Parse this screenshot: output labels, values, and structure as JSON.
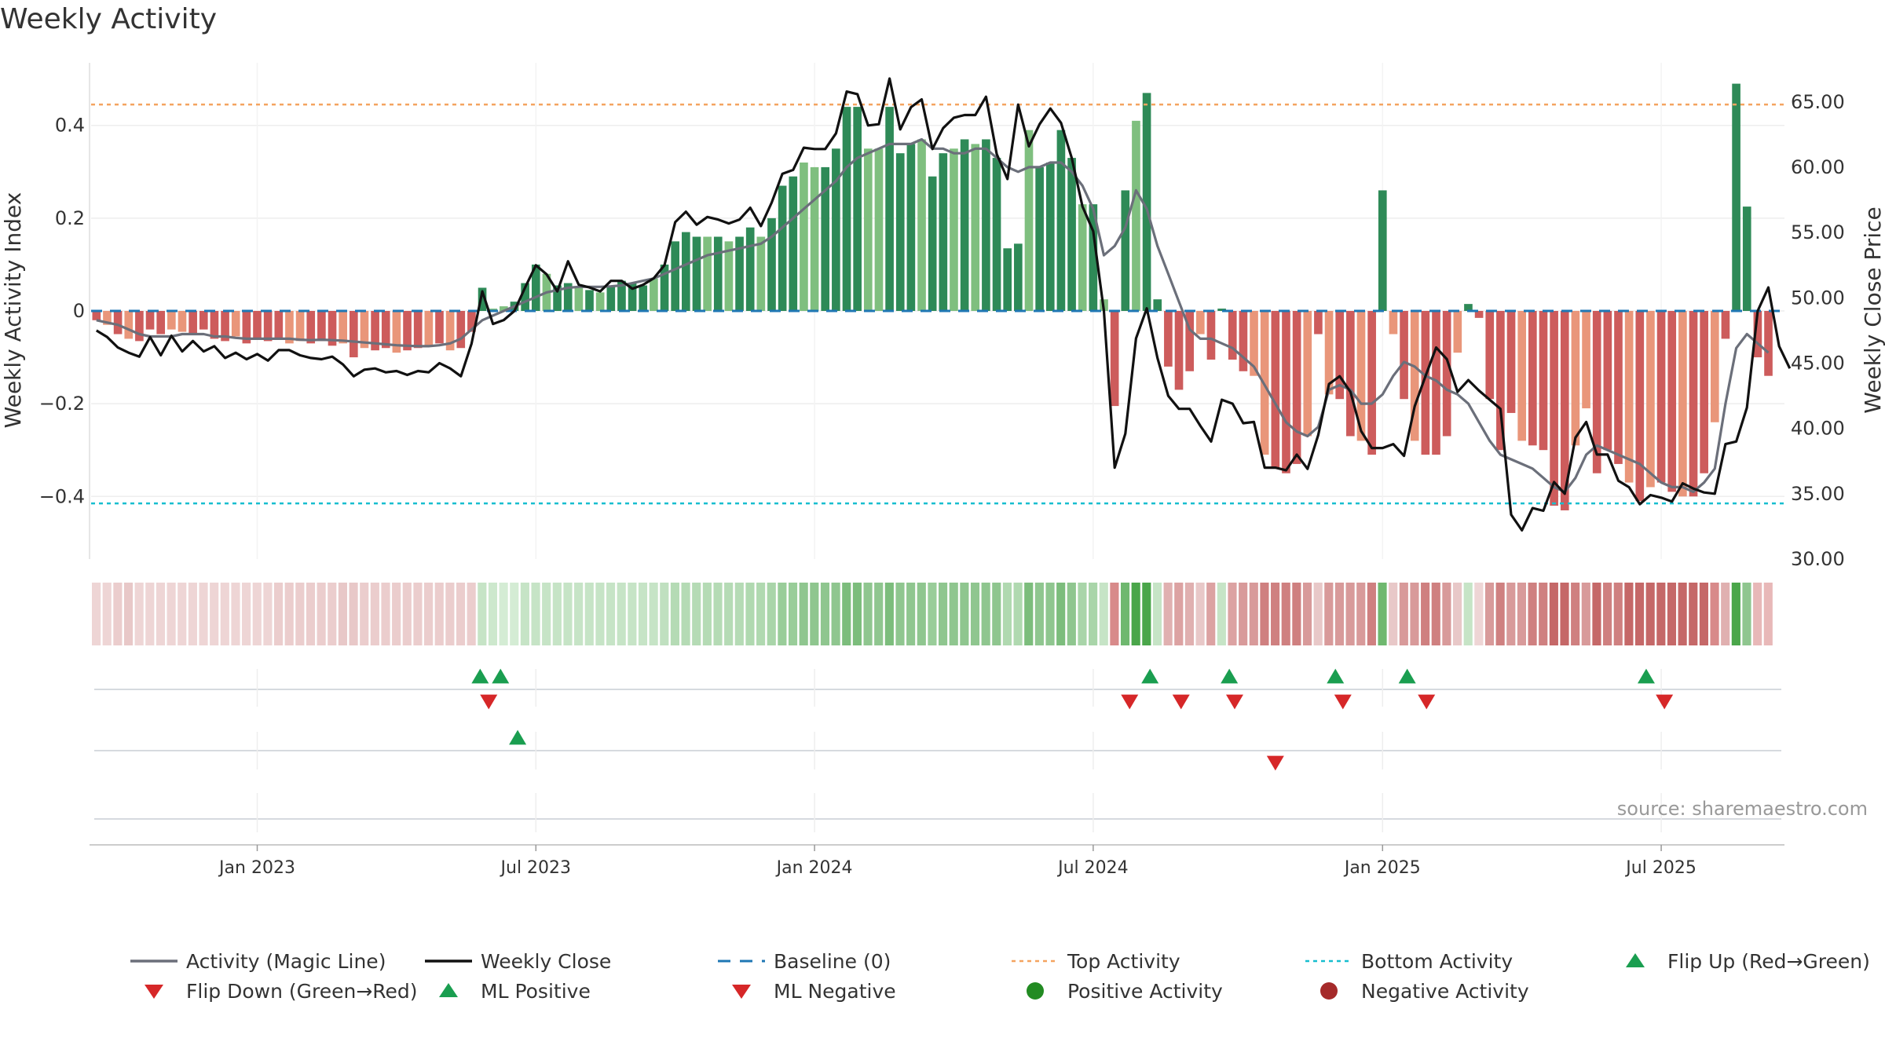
{
  "title": "Weekly Activity",
  "source": "source: sharemaestro.com",
  "colors": {
    "pos_dark": "#2e8a57",
    "pos_light": "#7fbf7f",
    "neg_dark": "#cd5c5c",
    "neg_light": "#e9967a",
    "magic_line": "#6b6f7a",
    "close_line": "#111111",
    "baseline": "#1f77b4",
    "top_line": "#f4a460",
    "bottom_line": "#17becf",
    "flip_up": "#1a9e50",
    "flip_down": "#d62728",
    "pos_dot": "#228b22",
    "neg_dot": "#a52a2a"
  },
  "chart_data": {
    "type": "bar",
    "title": "Weekly Activity",
    "y_left_label": "Weekly Activity Index",
    "y_right_label": "Weekly Close Price",
    "y_left_ticks": [
      {
        "v": 0.4,
        "t": "0.4"
      },
      {
        "v": 0.2,
        "t": "0.2"
      },
      {
        "v": 0,
        "t": "0"
      },
      {
        "v": -0.2,
        "t": "−0.2"
      },
      {
        "v": -0.4,
        "t": "−0.4"
      }
    ],
    "y_left_lim": [
      -0.535,
      0.535
    ],
    "y_right_ticks": [
      "65.00",
      "60.00",
      "55.00",
      "50.00",
      "45.00",
      "40.00",
      "35.00",
      "30.00"
    ],
    "y_right_lim": [
      30,
      68
    ],
    "x_week_count": 158,
    "x_ticks": [
      {
        "week": 15,
        "label": "Jan 2023"
      },
      {
        "week": 41,
        "label": "Jul 2023"
      },
      {
        "week": 67,
        "label": "Jan 2024"
      },
      {
        "week": 93,
        "label": "Jul 2024"
      },
      {
        "week": 120,
        "label": "Jan 2025"
      },
      {
        "week": 146,
        "label": "Jul 2025"
      }
    ],
    "top_activity": 0.445,
    "bottom_activity": -0.415,
    "baseline": 0,
    "activity": [
      -0.02,
      -0.03,
      -0.05,
      -0.06,
      -0.065,
      -0.04,
      -0.05,
      -0.04,
      -0.045,
      -0.05,
      -0.04,
      -0.06,
      -0.065,
      -0.055,
      -0.07,
      -0.06,
      -0.065,
      -0.06,
      -0.07,
      -0.065,
      -0.07,
      -0.065,
      -0.075,
      -0.07,
      -0.1,
      -0.08,
      -0.085,
      -0.08,
      -0.09,
      -0.085,
      -0.08,
      -0.075,
      -0.07,
      -0.085,
      -0.08,
      -0.045,
      0.05,
      0.005,
      0.01,
      0.02,
      0.06,
      0.1,
      0.08,
      0.055,
      0.06,
      0.05,
      0.045,
      0.04,
      0.055,
      0.065,
      0.06,
      0.055,
      0.07,
      0.1,
      0.15,
      0.17,
      0.16,
      0.16,
      0.16,
      0.15,
      0.16,
      0.18,
      0.16,
      0.2,
      0.27,
      0.29,
      0.32,
      0.31,
      0.31,
      0.35,
      0.44,
      0.44,
      0.35,
      0.35,
      0.44,
      0.34,
      0.36,
      0.37,
      0.29,
      0.34,
      0.35,
      0.37,
      0.36,
      0.37,
      0.33,
      0.135,
      0.145,
      0.39,
      0.31,
      0.32,
      0.39,
      0.33,
      0.23,
      0.23,
      0.025,
      -0.205,
      0.26,
      0.41,
      0.47,
      0.025,
      -0.12,
      -0.17,
      -0.13,
      -0.05,
      -0.105,
      0.005,
      -0.105,
      -0.13,
      -0.14,
      -0.31,
      -0.34,
      -0.35,
      -0.33,
      -0.27,
      -0.05,
      -0.18,
      -0.19,
      -0.27,
      -0.28,
      -0.31,
      0.26,
      -0.05,
      -0.19,
      -0.28,
      -0.31,
      -0.31,
      -0.27,
      -0.09,
      0.015,
      -0.015,
      -0.19,
      -0.3,
      -0.22,
      -0.28,
      -0.29,
      -0.3,
      -0.42,
      -0.43,
      -0.29,
      -0.21,
      -0.35,
      -0.3,
      -0.33,
      -0.37,
      -0.41,
      -0.38,
      -0.37,
      -0.39,
      -0.4,
      -0.4,
      -0.35,
      -0.24,
      -0.06,
      0.49,
      0.225,
      -0.1,
      -0.14
    ],
    "magic_line": [
      -0.02,
      -0.025,
      -0.03,
      -0.04,
      -0.05,
      -0.055,
      -0.055,
      -0.055,
      -0.05,
      -0.05,
      -0.05,
      -0.055,
      -0.055,
      -0.058,
      -0.06,
      -0.06,
      -0.06,
      -0.06,
      -0.06,
      -0.062,
      -0.063,
      -0.062,
      -0.063,
      -0.064,
      -0.066,
      -0.068,
      -0.07,
      -0.072,
      -0.074,
      -0.075,
      -0.076,
      -0.076,
      -0.074,
      -0.07,
      -0.06,
      -0.04,
      -0.02,
      -0.01,
      0.0,
      0.01,
      0.02,
      0.03,
      0.04,
      0.045,
      0.05,
      0.052,
      0.052,
      0.052,
      0.053,
      0.055,
      0.06,
      0.065,
      0.07,
      0.08,
      0.09,
      0.1,
      0.11,
      0.12,
      0.125,
      0.13,
      0.135,
      0.14,
      0.145,
      0.16,
      0.18,
      0.2,
      0.22,
      0.24,
      0.26,
      0.28,
      0.31,
      0.33,
      0.34,
      0.35,
      0.36,
      0.36,
      0.36,
      0.37,
      0.35,
      0.35,
      0.34,
      0.34,
      0.35,
      0.35,
      0.33,
      0.31,
      0.3,
      0.31,
      0.31,
      0.32,
      0.32,
      0.3,
      0.27,
      0.22,
      0.12,
      0.14,
      0.18,
      0.26,
      0.22,
      0.14,
      0.08,
      0.02,
      -0.04,
      -0.06,
      -0.06,
      -0.07,
      -0.08,
      -0.1,
      -0.12,
      -0.16,
      -0.2,
      -0.24,
      -0.26,
      -0.27,
      -0.25,
      -0.17,
      -0.16,
      -0.17,
      -0.2,
      -0.2,
      -0.18,
      -0.14,
      -0.11,
      -0.12,
      -0.14,
      -0.15,
      -0.17,
      -0.18,
      -0.2,
      -0.24,
      -0.28,
      -0.31,
      -0.32,
      -0.33,
      -0.34,
      -0.36,
      -0.38,
      -0.39,
      -0.36,
      -0.31,
      -0.29,
      -0.3,
      -0.31,
      -0.32,
      -0.33,
      -0.35,
      -0.37,
      -0.38,
      -0.38,
      -0.39,
      -0.37,
      -0.34,
      -0.2,
      -0.08,
      -0.05,
      -0.07,
      -0.09
    ],
    "weekly_close": [
      47.5,
      47.0,
      46.2,
      45.8,
      45.5,
      47.0,
      45.6,
      47.1,
      45.9,
      46.7,
      45.9,
      46.3,
      45.4,
      45.8,
      45.3,
      45.7,
      45.2,
      46.0,
      46.0,
      45.6,
      45.4,
      45.3,
      45.5,
      44.9,
      44.0,
      44.5,
      44.6,
      44.3,
      44.4,
      44.1,
      44.4,
      44.3,
      45.0,
      44.6,
      44.0,
      46.5,
      50.5,
      48.0,
      48.3,
      49.0,
      50.8,
      52.5,
      51.8,
      50.5,
      52.8,
      51.0,
      50.8,
      50.5,
      51.3,
      51.3,
      50.7,
      51.0,
      51.5,
      52.5,
      55.8,
      56.6,
      55.6,
      56.2,
      56.0,
      55.7,
      56.0,
      56.9,
      55.5,
      57.3,
      59.5,
      59.8,
      61.5,
      61.4,
      61.4,
      62.6,
      65.8,
      65.6,
      63.2,
      63.3,
      66.8,
      62.9,
      64.6,
      65.2,
      61.4,
      63.0,
      63.8,
      64.0,
      64.0,
      65.4,
      61.0,
      59.1,
      64.8,
      61.6,
      63.3,
      64.5,
      63.4,
      60.7,
      57.0,
      55.1,
      49.0,
      37.0,
      39.6,
      46.9,
      49.2,
      45.4,
      42.5,
      41.5,
      41.5,
      40.2,
      39.0,
      42.2,
      41.9,
      40.4,
      40.5,
      37.0,
      37.0,
      36.8,
      38.0,
      36.9,
      39.5,
      43.4,
      44.0,
      42.8,
      39.8,
      38.5,
      38.5,
      38.8,
      37.9,
      41.7,
      44.0,
      46.2,
      45.3,
      42.8,
      43.7,
      42.9,
      42.2,
      41.5,
      33.4,
      32.2,
      33.9,
      33.7,
      35.9,
      35.0,
      39.3,
      40.5,
      38.0,
      38.0,
      36.0,
      35.5,
      34.2,
      34.9,
      34.7,
      34.4,
      35.8,
      35.4,
      35.1,
      35.0,
      38.8,
      39.0,
      41.6,
      49.0,
      50.8,
      46.3,
      44.6
    ],
    "strip_colors": [
      "#eed5d5",
      "#eed5d5",
      "#ebcdcd",
      "#e8c8c8",
      "#eed5d5",
      "#eed5d5",
      "#eed5d5",
      "#eed5d5",
      "#eed5d5",
      "#eed5d5",
      "#eed5d5",
      "#eed5d5",
      "#eed5d5",
      "#eed5d5",
      "#eed5d5",
      "#eed5d5",
      "#eed5d5",
      "#ebcdcd",
      "#ebcdcd",
      "#ebcdcd",
      "#ebcdcd",
      "#ebcdcd",
      "#ebcdcd",
      "#e8c8c8",
      "#e8c8c8",
      "#ebcdcd",
      "#ebcdcd",
      "#ebcdcd",
      "#ebcdcd",
      "#ebcdcd",
      "#ebcdcd",
      "#ebcdcd",
      "#ebcdcd",
      "#ebcdcd",
      "#ebcdcd",
      "#ebcdcd",
      "#c6e4c6",
      "#cde8cd",
      "#d4ecd4",
      "#d4ecd4",
      "#c6e4c6",
      "#c6e4c6",
      "#c6e4c6",
      "#c6e4c6",
      "#c6e4c6",
      "#c6e4c6",
      "#c6e4c6",
      "#c6e4c6",
      "#c6e4c6",
      "#c6e4c6",
      "#c6e4c6",
      "#c6e4c6",
      "#c6e4c6",
      "#c0e0c0",
      "#b5dbb5",
      "#b5dbb5",
      "#b5dbb5",
      "#b5dbb5",
      "#b5dbb5",
      "#b5dbb5",
      "#b5dbb5",
      "#b0d9b0",
      "#b0d9b0",
      "#a9d5a9",
      "#99cd99",
      "#99cd99",
      "#8fc68f",
      "#8fc68f",
      "#8fc68f",
      "#8fc68f",
      "#7cbd7c",
      "#7cbd7c",
      "#8fc68f",
      "#8fc68f",
      "#7cbd7c",
      "#8fc68f",
      "#8fc68f",
      "#8fc68f",
      "#99cd99",
      "#8fc68f",
      "#8fc68f",
      "#8fc68f",
      "#8fc68f",
      "#8fc68f",
      "#8fc68f",
      "#b0d9b0",
      "#b0d9b0",
      "#7cbd7c",
      "#8fc68f",
      "#8fc68f",
      "#7cbd7c",
      "#8fc68f",
      "#a9d5a9",
      "#a9d5a9",
      "#c6e4c6",
      "#d88a8a",
      "#6fb86f",
      "#4aa64a",
      "#4aa64a",
      "#c6e4c6",
      "#e0b0b0",
      "#dca2a2",
      "#e0b0b0",
      "#e8c8c8",
      "#dca2a2",
      "#c6e4c6",
      "#dca2a2",
      "#d89a9a",
      "#d89a9a",
      "#cf8080",
      "#cf8080",
      "#cf8080",
      "#cf8080",
      "#d89a9a",
      "#e8c8c8",
      "#d89a9a",
      "#d89a9a",
      "#d89a9a",
      "#d89a9a",
      "#cf8080",
      "#6fb86f",
      "#e8c8c8",
      "#d89a9a",
      "#d89a9a",
      "#cf8080",
      "#cf8080",
      "#d89a9a",
      "#e8c8c8",
      "#c6e4c6",
      "#eed5d5",
      "#d89a9a",
      "#cf8080",
      "#d89a9a",
      "#d89a9a",
      "#cf8080",
      "#cf8080",
      "#c56868",
      "#c56868",
      "#cf8080",
      "#d89a9a",
      "#c56868",
      "#cf8080",
      "#cf8080",
      "#c56868",
      "#c56868",
      "#c56868",
      "#c56868",
      "#c56868",
      "#c56868",
      "#c56868",
      "#c56868",
      "#d88a8a",
      "#e0b0b0",
      "#4aa64a",
      "#8fc68f",
      "#e8b8b8",
      "#e8b8b8"
    ],
    "flip_up_weeks": [
      35.8,
      37.7,
      98.3,
      105.7,
      115.6,
      122.3,
      144.6
    ],
    "flip_down_weeks": [
      36.6,
      96.4,
      101.2,
      106.2,
      116.3,
      124.1,
      146.3
    ],
    "ml_positive_weeks": [
      39.3
    ],
    "ml_negative_weeks": [
      110.0
    ],
    "legend": [
      {
        "key": "magic",
        "label": "Activity (Magic Line)"
      },
      {
        "key": "close",
        "label": "Weekly Close"
      },
      {
        "key": "baseline",
        "label": "Baseline (0)"
      },
      {
        "key": "top",
        "label": "Top Activity"
      },
      {
        "key": "bottom",
        "label": "Bottom Activity"
      },
      {
        "key": "flipup",
        "label": "Flip Up (Red→Green)"
      },
      {
        "key": "flipdown",
        "label": "Flip Down (Green→Red)"
      },
      {
        "key": "mlpos",
        "label": "ML Positive"
      },
      {
        "key": "mlneg",
        "label": "ML Negative"
      },
      {
        "key": "posdot",
        "label": "Positive Activity"
      },
      {
        "key": "negdot",
        "label": "Negative Activity"
      }
    ]
  }
}
